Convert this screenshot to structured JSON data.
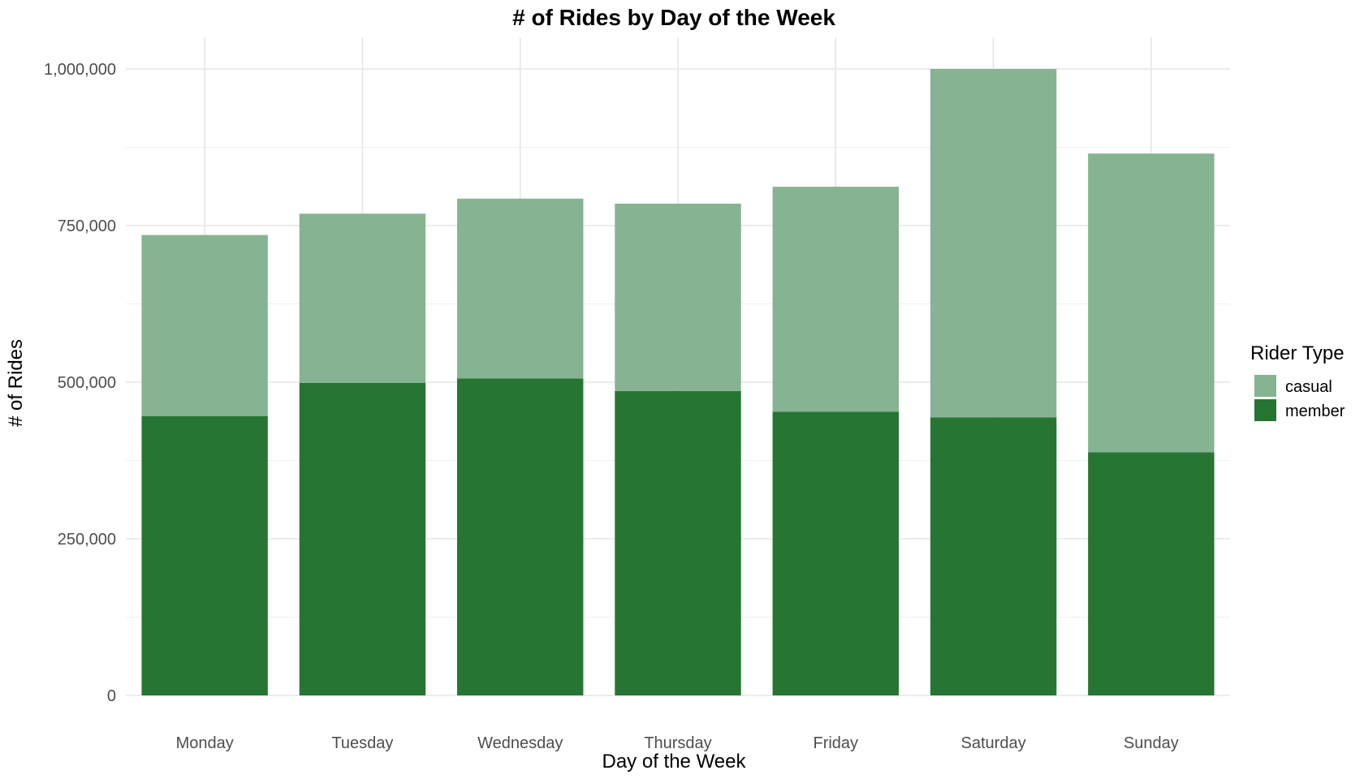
{
  "chart_data": {
    "type": "bar",
    "stacked": true,
    "title": "# of Rides by Day of the Week",
    "xlabel": "Day of the Week",
    "ylabel": "# of Rides",
    "categories": [
      "Monday",
      "Tuesday",
      "Wednesday",
      "Thursday",
      "Friday",
      "Saturday",
      "Sunday"
    ],
    "series": [
      {
        "name": "member",
        "color": "#277532",
        "values": [
          446000,
          499000,
          506000,
          486000,
          453000,
          444000,
          388000
        ]
      },
      {
        "name": "casual",
        "color": "#86b391",
        "values": [
          289000,
          270000,
          287000,
          299000,
          359000,
          556000,
          477000
        ]
      }
    ],
    "ylim": [
      0,
      1050000
    ],
    "yticks": [
      0,
      250000,
      500000,
      750000,
      1000000
    ],
    "ytick_labels": [
      "0",
      "250,000",
      "500,000",
      "750,000",
      "1,000,000"
    ],
    "grid": true,
    "legend": {
      "title": "Rider Type",
      "placement": "right",
      "entries": [
        "casual",
        "member"
      ]
    }
  }
}
